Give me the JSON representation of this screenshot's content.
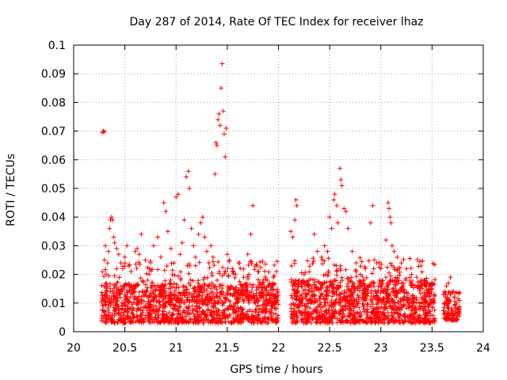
{
  "chart_data": {
    "type": "scatter",
    "title": "Day 287 of 2014, Rate Of TEC Index for receiver lhaz",
    "xlabel": "GPS time / hours",
    "ylabel": "ROTI / TECUs",
    "xlim": [
      20,
      24
    ],
    "ylim": [
      0,
      0.1
    ],
    "xticks": [
      "20",
      "20.5",
      "21",
      "21.5",
      "22",
      "22.5",
      "23",
      "23.5",
      "24"
    ],
    "yticks": [
      "0",
      "0.01",
      "0.02",
      "0.03",
      "0.04",
      "0.05",
      "0.06",
      "0.07",
      "0.08",
      "0.09",
      "0.1"
    ],
    "grid": true,
    "marker": "+",
    "series": [
      {
        "name": "ROTI",
        "color": "#ff0000",
        "points": [
          [
            20.28,
            0.0695
          ],
          [
            20.29,
            0.07
          ],
          [
            20.3,
            0.0698
          ],
          [
            20.3,
            0.025
          ],
          [
            20.31,
            0.03
          ],
          [
            20.33,
            0.024
          ],
          [
            20.34,
            0.028
          ],
          [
            20.35,
            0.036
          ],
          [
            20.36,
            0.039
          ],
          [
            20.37,
            0.04
          ],
          [
            20.38,
            0.039
          ],
          [
            20.39,
            0.033
          ],
          [
            20.4,
            0.031
          ],
          [
            20.42,
            0.029
          ],
          [
            20.44,
            0.027
          ],
          [
            20.46,
            0.024
          ],
          [
            20.48,
            0.022
          ],
          [
            20.5,
            0.026
          ],
          [
            20.52,
            0.03
          ],
          [
            20.54,
            0.023
          ],
          [
            20.56,
            0.021
          ],
          [
            20.6,
            0.028
          ],
          [
            20.62,
            0.029
          ],
          [
            20.64,
            0.027
          ],
          [
            20.66,
            0.034
          ],
          [
            20.7,
            0.025
          ],
          [
            20.74,
            0.022
          ],
          [
            20.78,
            0.03
          ],
          [
            20.82,
            0.033
          ],
          [
            20.85,
            0.026
          ],
          [
            20.88,
            0.045
          ],
          [
            20.9,
            0.042
          ],
          [
            20.92,
            0.035
          ],
          [
            20.95,
            0.029
          ],
          [
            20.98,
            0.024
          ],
          [
            21.0,
            0.047
          ],
          [
            21.02,
            0.048
          ],
          [
            21.04,
            0.027
          ],
          [
            21.06,
            0.031
          ],
          [
            21.08,
            0.039
          ],
          [
            21.1,
            0.054
          ],
          [
            21.12,
            0.056
          ],
          [
            21.13,
            0.05
          ],
          [
            21.15,
            0.036
          ],
          [
            21.17,
            0.03
          ],
          [
            21.19,
            0.026
          ],
          [
            21.22,
            0.034
          ],
          [
            21.24,
            0.038
          ],
          [
            21.26,
            0.04
          ],
          [
            21.28,
            0.033
          ],
          [
            21.3,
            0.028
          ],
          [
            21.32,
            0.024
          ],
          [
            21.34,
            0.03
          ],
          [
            21.36,
            0.026
          ],
          [
            21.38,
            0.055
          ],
          [
            21.39,
            0.066
          ],
          [
            21.4,
            0.065
          ],
          [
            21.41,
            0.074
          ],
          [
            21.42,
            0.076
          ],
          [
            21.43,
            0.072
          ],
          [
            21.44,
            0.085
          ],
          [
            21.45,
            0.0935
          ],
          [
            21.46,
            0.077
          ],
          [
            21.47,
            0.069
          ],
          [
            21.48,
            0.061
          ],
          [
            21.49,
            0.071
          ],
          [
            21.5,
            0.027
          ],
          [
            21.52,
            0.025
          ],
          [
            21.55,
            0.022
          ],
          [
            21.58,
            0.02
          ],
          [
            21.62,
            0.024
          ],
          [
            21.66,
            0.019
          ],
          [
            21.7,
            0.027
          ],
          [
            21.73,
            0.034
          ],
          [
            21.75,
            0.044
          ],
          [
            21.8,
            0.021
          ],
          [
            21.85,
            0.018
          ],
          [
            21.9,
            0.016
          ],
          [
            21.95,
            0.019
          ],
          [
            21.98,
            0.021
          ],
          [
            22.12,
            0.035
          ],
          [
            22.14,
            0.033
          ],
          [
            22.16,
            0.039
          ],
          [
            22.17,
            0.046
          ],
          [
            22.18,
            0.044
          ],
          [
            22.2,
            0.018
          ],
          [
            22.25,
            0.02
          ],
          [
            22.3,
            0.016
          ],
          [
            22.35,
            0.034
          ],
          [
            22.38,
            0.028
          ],
          [
            22.42,
            0.026
          ],
          [
            22.45,
            0.03
          ],
          [
            22.48,
            0.028
          ],
          [
            22.5,
            0.04
          ],
          [
            22.52,
            0.036
          ],
          [
            22.54,
            0.046
          ],
          [
            22.55,
            0.048
          ],
          [
            22.57,
            0.044
          ],
          [
            22.58,
            0.038
          ],
          [
            22.6,
            0.057
          ],
          [
            22.61,
            0.053
          ],
          [
            22.62,
            0.051
          ],
          [
            22.64,
            0.043
          ],
          [
            22.66,
            0.042
          ],
          [
            22.68,
            0.036
          ],
          [
            22.72,
            0.028
          ],
          [
            22.76,
            0.024
          ],
          [
            22.8,
            0.02
          ],
          [
            22.85,
            0.022
          ],
          [
            22.9,
            0.038
          ],
          [
            22.92,
            0.044
          ],
          [
            22.96,
            0.024
          ],
          [
            23.0,
            0.022
          ],
          [
            23.05,
            0.032
          ],
          [
            23.07,
            0.045
          ],
          [
            23.08,
            0.043
          ],
          [
            23.09,
            0.04
          ],
          [
            23.1,
            0.038
          ],
          [
            23.11,
            0.03
          ],
          [
            23.13,
            0.028
          ],
          [
            23.16,
            0.026
          ],
          [
            23.2,
            0.024
          ],
          [
            23.25,
            0.022
          ],
          [
            23.3,
            0.02
          ],
          [
            23.35,
            0.019
          ],
          [
            23.4,
            0.018
          ],
          [
            23.45,
            0.017
          ],
          [
            23.5,
            0.015
          ],
          [
            23.52,
            0.013
          ],
          [
            23.62,
            0.014
          ],
          [
            23.64,
            0.016
          ],
          [
            23.66,
            0.017
          ],
          [
            23.68,
            0.019
          ],
          [
            23.7,
            0.014
          ],
          [
            23.72,
            0.012
          ],
          [
            23.74,
            0.01
          ],
          [
            23.76,
            0.008
          ]
        ],
        "dense_bands": [
          {
            "x": [
              20.27,
              22.0
            ],
            "y": [
              0.003,
              0.017
            ],
            "count": 1150
          },
          {
            "x": [
              20.27,
              22.0
            ],
            "y": [
              0.01,
              0.025
            ],
            "count": 260
          },
          {
            "x": [
              22.12,
              23.53
            ],
            "y": [
              0.003,
              0.018
            ],
            "count": 1000
          },
          {
            "x": [
              22.12,
              23.53
            ],
            "y": [
              0.01,
              0.026
            ],
            "count": 230
          },
          {
            "x": [
              23.61,
              23.77
            ],
            "y": [
              0.004,
              0.014
            ],
            "count": 110
          }
        ]
      }
    ]
  }
}
